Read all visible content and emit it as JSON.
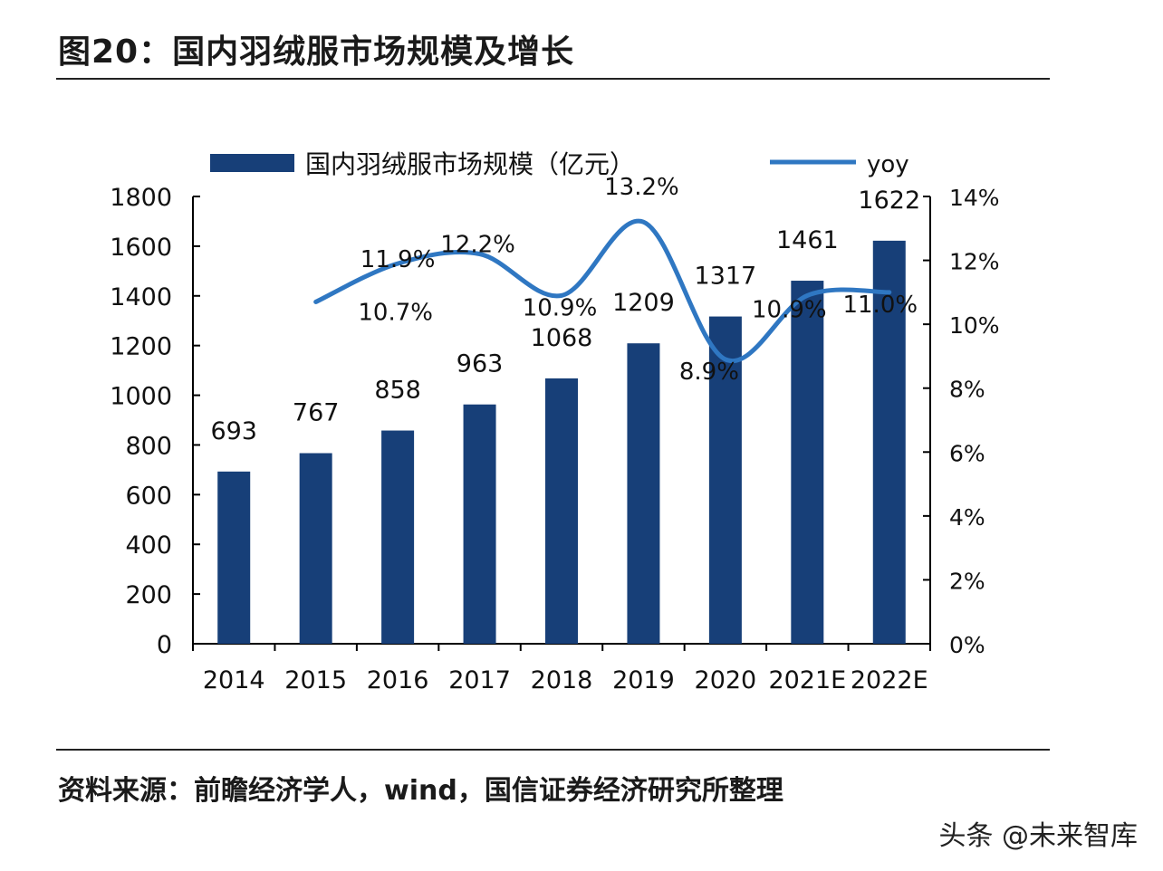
{
  "title": "图20：国内羽绒服市场规模及增长",
  "source": "资料来源：前瞻经济学人，wind，国信证券经济研究所整理",
  "watermark": "头条 @未来智库",
  "chart_data": {
    "type": "bar+line",
    "categories": [
      "2014",
      "2015",
      "2016",
      "2017",
      "2018",
      "2019",
      "2020",
      "2021E",
      "2022E"
    ],
    "series": [
      {
        "name": "国内羽绒服市场规模（亿元）",
        "type": "bar",
        "axis": "left",
        "color": "#173f78",
        "values": [
          693,
          767,
          858,
          963,
          1068,
          1209,
          1317,
          1461,
          1622
        ]
      },
      {
        "name": "yoy",
        "type": "line",
        "axis": "right",
        "color": "#2f77c2",
        "smooth": true,
        "values": [
          null,
          10.7,
          11.9,
          12.2,
          10.9,
          13.2,
          8.9,
          10.9,
          11.0
        ],
        "labels": [
          null,
          "10.7%",
          "11.9%",
          "12.2%",
          "10.9%",
          "13.2%",
          "8.9%",
          "10.9%",
          "11.0%"
        ]
      }
    ],
    "y_left": {
      "min": 0,
      "max": 1800,
      "ticks": [
        "0",
        "200",
        "400",
        "600",
        "800",
        "1000",
        "1200",
        "1400",
        "1600",
        "1800"
      ]
    },
    "y_right": {
      "min": 0,
      "max": 14,
      "ticks": [
        "0%",
        "2%",
        "4%",
        "6%",
        "8%",
        "10%",
        "12%",
        "14%"
      ]
    },
    "legend": "top",
    "grid": false
  }
}
